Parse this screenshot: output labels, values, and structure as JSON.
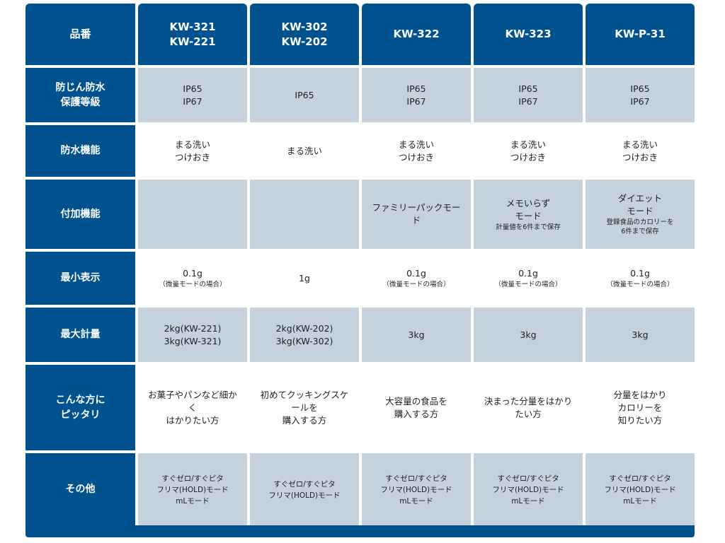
{
  "colors": {
    "header": "#00528f",
    "shaded": "#c5d1dc",
    "plain": "#ffffff"
  },
  "header": {
    "label": "品番",
    "models": [
      [
        "KW-321",
        "KW-221"
      ],
      [
        "KW-302",
        "KW-202"
      ],
      [
        "KW-322"
      ],
      [
        "KW-323"
      ],
      [
        "KW-P-31"
      ]
    ]
  },
  "rows": [
    {
      "label": [
        "防じん防水",
        "保護等級"
      ],
      "shade": "g",
      "cells": [
        {
          "lines": [
            "IP65",
            "IP67"
          ]
        },
        {
          "lines": [
            "IP65"
          ]
        },
        {
          "lines": [
            "IP65",
            "IP67"
          ]
        },
        {
          "lines": [
            "IP65",
            "IP67"
          ]
        },
        {
          "lines": [
            "IP65",
            "IP67"
          ]
        }
      ]
    },
    {
      "label": [
        "防水機能"
      ],
      "shade": "w",
      "cells": [
        {
          "lines": [
            "まる洗い",
            "つけおき"
          ]
        },
        {
          "lines": [
            "まる洗い"
          ]
        },
        {
          "lines": [
            "まる洗い",
            "つけおき"
          ]
        },
        {
          "lines": [
            "まる洗い",
            "つけおき"
          ]
        },
        {
          "lines": [
            "まる洗い",
            "つけおき"
          ]
        }
      ]
    },
    {
      "label": [
        "付加機能"
      ],
      "shade": "g",
      "cells": [
        {
          "lines": []
        },
        {
          "lines": []
        },
        {
          "lines": [
            "ファミリーパックモー",
            "ド"
          ]
        },
        {
          "lines": [
            "メモいらず",
            "モード"
          ],
          "small": [
            "計量値を6件まで保存"
          ]
        },
        {
          "lines": [
            "ダイエット",
            "モード"
          ],
          "small": [
            "登録食品のカロリーを",
            "6件まで保存"
          ]
        }
      ]
    },
    {
      "label": [
        "最小表示"
      ],
      "shade": "w",
      "cells": [
        {
          "lines": [
            "0.1g"
          ],
          "small": [
            "（微量モードの場合）"
          ]
        },
        {
          "lines": [
            "1g"
          ]
        },
        {
          "lines": [
            "0.1g"
          ],
          "small": [
            "（微量モードの場合）"
          ]
        },
        {
          "lines": [
            "0.1g"
          ],
          "small": [
            "（微量モードの場合）"
          ]
        },
        {
          "lines": [
            "0.1g"
          ],
          "small": [
            "（微量モードの場合）"
          ]
        }
      ]
    },
    {
      "label": [
        "最大計量"
      ],
      "shade": "g",
      "cells": [
        {
          "lines": [
            "2kg(KW-221)",
            "3kg(KW-321)"
          ]
        },
        {
          "lines": [
            "2kg(KW-202)",
            "3kg(KW-302)"
          ]
        },
        {
          "lines": [
            "3kg"
          ]
        },
        {
          "lines": [
            "3kg"
          ]
        },
        {
          "lines": [
            "3kg"
          ]
        }
      ]
    },
    {
      "label": [
        "こんな方に",
        "ピッタリ"
      ],
      "shade": "w",
      "cells": [
        {
          "lines": [
            "お菓子やパンなど細か",
            "く",
            "はかりたい方"
          ]
        },
        {
          "lines": [
            "初めてクッキングスケ",
            "ールを",
            "購入する方"
          ]
        },
        {
          "lines": [
            "大容量の食品を",
            "購入する方"
          ]
        },
        {
          "lines": [
            "決まった分量をはかり",
            "たい方"
          ]
        },
        {
          "lines": [
            "分量をはかり",
            "カロリーを",
            "知りたい方"
          ]
        }
      ]
    },
    {
      "label": [
        "その他"
      ],
      "shade": "g",
      "mono": true,
      "cells": [
        {
          "lines": [
            "すぐゼロ/すぐピタ",
            "フリマ(HOLD)モード",
            "mLモード"
          ]
        },
        {
          "lines": [
            "すぐゼロ/すぐピタ",
            "フリマ(HOLD)モード"
          ]
        },
        {
          "lines": [
            "すぐゼロ/すぐピタ",
            "フリマ(HOLD)モード",
            "mLモード"
          ]
        },
        {
          "lines": [
            "すぐゼロ/すぐピタ",
            "フリマ(HOLD)モード",
            "mLモード"
          ]
        },
        {
          "lines": [
            "すぐゼロ/すぐピタ",
            "フリマ(HOLD)モード",
            "mLモード"
          ]
        }
      ]
    }
  ]
}
